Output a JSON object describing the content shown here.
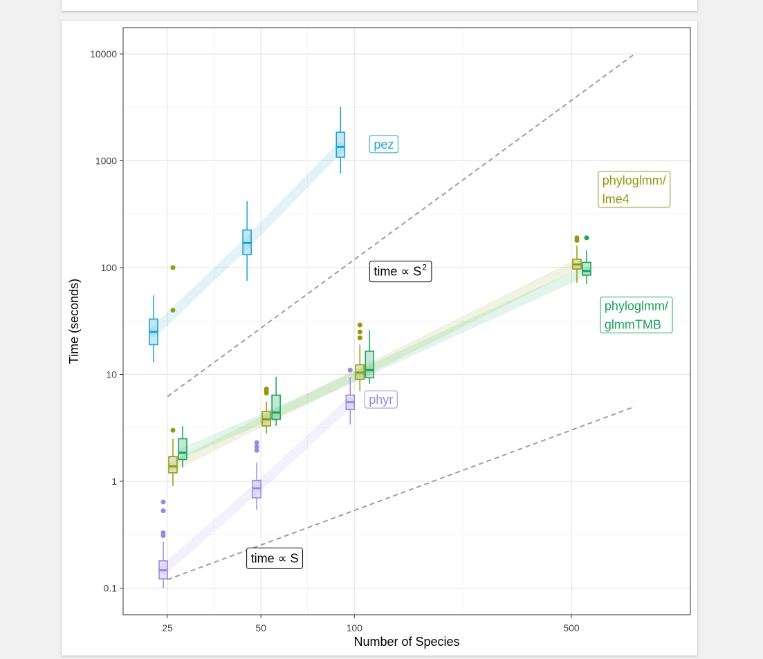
{
  "chart_data": {
    "type": "box",
    "xlabel": "Number of Species",
    "ylabel": "Time (seconds)",
    "x_scale": "log",
    "y_scale": "log",
    "x_ticks": [
      25,
      50,
      100,
      500
    ],
    "x_tick_labels": [
      "25",
      "50",
      "100",
      "500"
    ],
    "y_ticks": [
      0.1,
      1,
      10,
      100,
      1000,
      10000
    ],
    "y_tick_labels": [
      "0.1",
      "1",
      "10",
      "100",
      "1000",
      "10000"
    ],
    "xlim": [
      20,
      900
    ],
    "ylim": [
      0.06,
      14000
    ],
    "grid": true,
    "legend": "none (direct labels)",
    "series": [
      {
        "name": "pez",
        "label_lines": [
          "pez"
        ],
        "color": "#1aa3d1",
        "label_at": {
          "x": 112,
          "y": 1300
        },
        "boxes": [
          {
            "n": 25,
            "min": 13,
            "q1": 19,
            "median": 25,
            "q3": 33,
            "max": 55,
            "outliers": []
          },
          {
            "n": 50,
            "min": 75,
            "q1": 132,
            "median": 170,
            "q3": 225,
            "max": 420,
            "outliers": []
          },
          {
            "n": 100,
            "min": 760,
            "q1": 1080,
            "median": 1350,
            "q3": 1850,
            "max": 3200,
            "outliers": []
          }
        ]
      },
      {
        "name": "phyloglmm/lme4",
        "label_lines": [
          "phyloglmm/",
          "lme4"
        ],
        "color": "#8f9a10",
        "label_at": {
          "x": 610,
          "y": 600
        },
        "boxes": [
          {
            "n": 25,
            "min": 0.9,
            "q1": 1.2,
            "median": 1.38,
            "q3": 1.7,
            "max": 2.5,
            "outliers": [
              3.0,
              40,
              100
            ]
          },
          {
            "n": 50,
            "min": 2.8,
            "q1": 3.3,
            "median": 3.8,
            "q3": 4.5,
            "max": 5.6,
            "outliers": [
              6.7,
              7.0,
              7.3
            ]
          },
          {
            "n": 100,
            "min": 7.0,
            "q1": 9.0,
            "median": 10.4,
            "q3": 12.3,
            "max": 19,
            "outliers": [
              22,
              25,
              29
            ]
          },
          {
            "n": 500,
            "min": 72,
            "q1": 97,
            "median": 107,
            "q3": 120,
            "max": 160,
            "outliers": [
              180,
              190
            ]
          }
        ]
      },
      {
        "name": "phyloglmm/glmmTMB",
        "label_lines": [
          "phyloglmm/",
          "glmmTMB"
        ],
        "color": "#17a35a",
        "label_at": {
          "x": 620,
          "y": 40
        },
        "boxes": [
          {
            "n": 25,
            "min": 1.35,
            "q1": 1.6,
            "median": 1.85,
            "q3": 2.5,
            "max": 3.3,
            "outliers": []
          },
          {
            "n": 50,
            "min": 3.3,
            "q1": 3.8,
            "median": 4.4,
            "q3": 6.4,
            "max": 9.5,
            "outliers": []
          },
          {
            "n": 100,
            "min": 8.2,
            "q1": 9.3,
            "median": 11,
            "q3": 16.5,
            "max": 26,
            "outliers": []
          },
          {
            "n": 500,
            "min": 70,
            "q1": 85,
            "median": 93,
            "q3": 112,
            "max": 145,
            "outliers": [
              190
            ]
          }
        ]
      },
      {
        "name": "phyr",
        "label_lines": [
          "phyr"
        ],
        "color": "#9a88e0",
        "label_at": {
          "x": 108,
          "y": 5.3
        },
        "boxes": [
          {
            "n": 25,
            "min": 0.1,
            "q1": 0.122,
            "median": 0.147,
            "q3": 0.18,
            "max": 0.27,
            "outliers": [
              0.31,
              0.33,
              0.53,
              0.64
            ]
          },
          {
            "n": 50,
            "min": 0.54,
            "q1": 0.7,
            "median": 0.86,
            "q3": 1.02,
            "max": 1.5,
            "outliers": [
              1.95,
              2.1,
              2.3
            ]
          },
          {
            "n": 100,
            "min": 3.4,
            "q1": 4.7,
            "median": 5.5,
            "q3": 6.4,
            "max": 9.5,
            "outliers": [
              11
            ]
          }
        ]
      }
    ],
    "reference_lines": [
      {
        "name": "time ∝ S",
        "points": [
          [
            25,
            0.12
          ],
          [
            800,
            5.0
          ]
        ]
      },
      {
        "name": "time ∝ S²",
        "points": [
          [
            25,
            6.2
          ],
          [
            800,
            10000
          ]
        ]
      }
    ],
    "annotations": [
      {
        "text": "time ∝ S",
        "x": 45,
        "y": 0.19
      },
      {
        "text": "time ∝ S",
        "superscript": "2",
        "x": 112,
        "y": 92
      }
    ]
  }
}
